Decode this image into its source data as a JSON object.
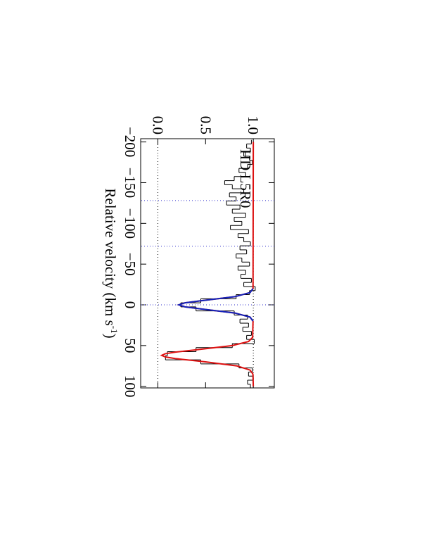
{
  "chart_data": {
    "type": "spectrum",
    "xlabel": "Relative velocity (km s",
    "xlabel_sup": "-1",
    "xlabel_end": ")",
    "annotation": "HD L5R0",
    "xlim": [
      -204,
      102
    ],
    "ylim": [
      -0.18,
      1.22
    ],
    "xticks": [
      {
        "value": -200,
        "label": "−200"
      },
      {
        "value": -150,
        "label": "−150"
      },
      {
        "value": -100,
        "label": "−100"
      },
      {
        "value": -50,
        "label": "−50"
      },
      0,
      50,
      100
    ],
    "yticks": [
      {
        "value": 0,
        "label": "0.0"
      },
      {
        "value": 0.5,
        "label": "0.5"
      },
      {
        "value": 1,
        "label": "1.0"
      }
    ],
    "velocity_markers": [
      -128,
      -72,
      0
    ],
    "velocity_marker_color": "#3333cc",
    "flux_markers": [
      0,
      1
    ],
    "flux_marker_color": "#000000",
    "spectrum": {
      "color": "#000000",
      "x": [
        -200,
        -195,
        -190,
        -185,
        -180,
        -175,
        -170,
        -165,
        -160,
        -155,
        -150,
        -145,
        -140,
        -135,
        -130,
        -125,
        -120,
        -115,
        -110,
        -105,
        -100,
        -95,
        -90,
        -85,
        -80,
        -75,
        -70,
        -65,
        -60,
        -55,
        -50,
        -45,
        -40,
        -35,
        -30,
        -25,
        -20,
        -15,
        -10,
        -5,
        0,
        5,
        10,
        15,
        20,
        25,
        30,
        35,
        40,
        45,
        50,
        55,
        60,
        65,
        70,
        75,
        80,
        85,
        90,
        95,
        100
      ],
      "values": [
        0.98,
        0.93,
        0.97,
        0.9,
        0.96,
        0.99,
        0.94,
        0.85,
        0.92,
        0.8,
        0.7,
        0.78,
        0.9,
        0.75,
        0.82,
        0.72,
        0.86,
        0.78,
        0.92,
        0.8,
        0.88,
        0.76,
        0.95,
        0.84,
        0.9,
        0.97,
        0.86,
        0.93,
        0.82,
        0.88,
        0.96,
        0.84,
        0.92,
        0.87,
        0.98,
        0.9,
        1.02,
        0.96,
        0.82,
        0.45,
        0.24,
        0.4,
        0.8,
        0.94,
        0.86,
        0.95,
        0.89,
        0.98,
        0.93,
        1.01,
        0.78,
        0.4,
        0.1,
        0.08,
        0.45,
        0.85,
        0.99,
        0.95,
        1.0,
        0.94,
        0.97
      ]
    },
    "models": [
      {
        "color": "#dd1111",
        "x": [
          -200,
          -20,
          -15,
          -10,
          -5,
          -2.5,
          0,
          2.5,
          5,
          10,
          15,
          20,
          40,
          45,
          50,
          55,
          58,
          60,
          62,
          64,
          66,
          70,
          75,
          80,
          85,
          100
        ],
        "values": [
          1,
          0.997,
          0.966,
          0.806,
          0.449,
          0.285,
          0.22,
          0.285,
          0.449,
          0.806,
          0.966,
          0.997,
          0.993,
          0.95,
          0.779,
          0.417,
          0.185,
          0.078,
          0.04,
          0.078,
          0.185,
          0.5,
          0.829,
          0.965,
          0.996,
          1
        ]
      },
      {
        "color": "#1122bb",
        "x": [
          -20,
          -15,
          -10,
          -5,
          -2.5,
          0,
          2.5,
          5,
          10,
          15,
          20
        ],
        "values": [
          0.997,
          0.966,
          0.806,
          0.449,
          0.285,
          0.22,
          0.285,
          0.449,
          0.806,
          0.966,
          0.997
        ]
      }
    ]
  }
}
